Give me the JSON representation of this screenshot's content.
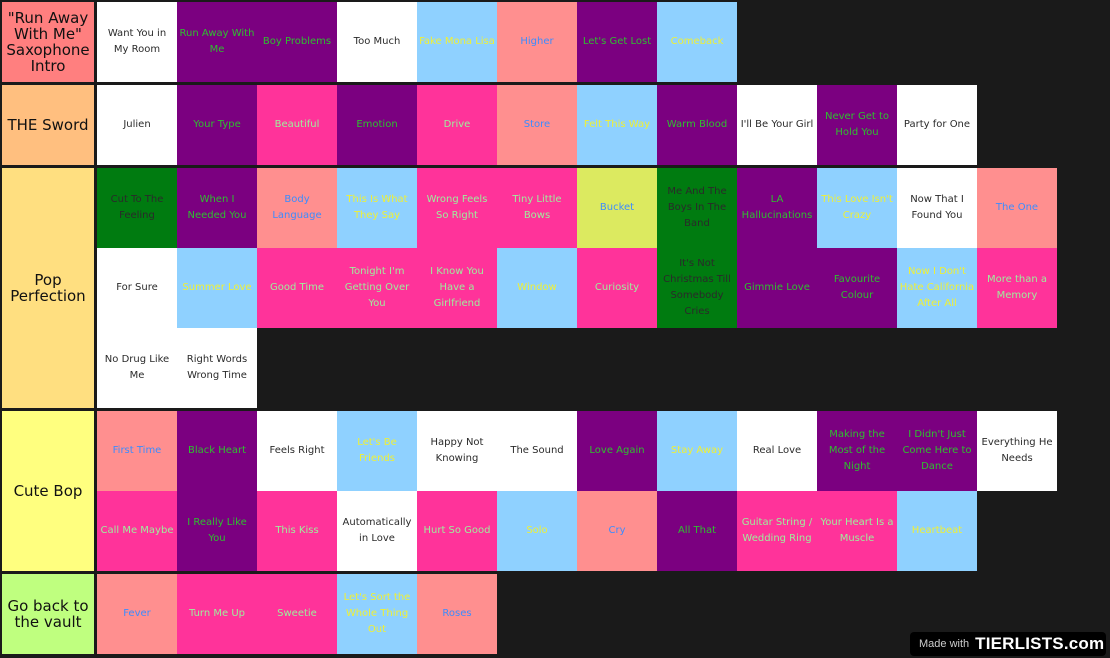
{
  "colors": {
    "white": "#ffffff",
    "purple": "#7b0080",
    "pink": "#ff339a",
    "salmon": "#ff8f8f",
    "lightblue": "#8fd1ff",
    "green": "#007b10",
    "yellowgreen": "#dcea60",
    "text_dark": "#2a2a2a",
    "text_green": "#2fbf2f",
    "text_lightgreen": "#9df09d",
    "text_yellow": "#f0f035",
    "text_blue": "#3c8cff"
  },
  "tiers": [
    {
      "name": "\"Run Away With Me\" Saxophone Intro",
      "color": "#ff7f7f",
      "rows": 1,
      "items": [
        {
          "label": "Want You in My Room",
          "bg": "white",
          "fg": "text_dark"
        },
        {
          "label": "Run Away With Me",
          "bg": "purple",
          "fg": "text_green"
        },
        {
          "label": "Boy Problems",
          "bg": "purple",
          "fg": "text_green"
        },
        {
          "label": "Too Much",
          "bg": "white",
          "fg": "text_dark"
        },
        {
          "label": "Fake Mona Lisa",
          "bg": "lightblue",
          "fg": "text_yellow"
        },
        {
          "label": "Higher",
          "bg": "salmon",
          "fg": "text_blue"
        },
        {
          "label": "Let's Get Lost",
          "bg": "purple",
          "fg": "text_green"
        },
        {
          "label": "Comeback",
          "bg": "lightblue",
          "fg": "text_yellow"
        }
      ]
    },
    {
      "name": "THE Sword",
      "color": "#ffbf7f",
      "rows": 1,
      "items": [
        {
          "label": "Julien",
          "bg": "white",
          "fg": "text_dark"
        },
        {
          "label": "Your Type",
          "bg": "purple",
          "fg": "text_green"
        },
        {
          "label": "Beautiful",
          "bg": "pink",
          "fg": "text_lightgreen"
        },
        {
          "label": "Emotion",
          "bg": "purple",
          "fg": "text_green"
        },
        {
          "label": "Drive",
          "bg": "pink",
          "fg": "text_lightgreen"
        },
        {
          "label": "Store",
          "bg": "salmon",
          "fg": "text_blue"
        },
        {
          "label": "Felt This Way",
          "bg": "lightblue",
          "fg": "text_yellow"
        },
        {
          "label": "Warm Blood",
          "bg": "purple",
          "fg": "text_green"
        },
        {
          "label": "I'll Be Your Girl",
          "bg": "white",
          "fg": "text_dark"
        },
        {
          "label": "Never Get to Hold You",
          "bg": "purple",
          "fg": "text_green"
        },
        {
          "label": "Party for One",
          "bg": "white",
          "fg": "text_dark"
        }
      ]
    },
    {
      "name": "Pop Perfection",
      "color": "#ffdf80",
      "rows": 3,
      "items": [
        {
          "label": "Cut To The Feeling",
          "bg": "green",
          "fg": "text_dark"
        },
        {
          "label": "When I Needed You",
          "bg": "purple",
          "fg": "text_green"
        },
        {
          "label": "Body Language",
          "bg": "salmon",
          "fg": "text_blue"
        },
        {
          "label": "This Is What They Say",
          "bg": "lightblue",
          "fg": "text_yellow"
        },
        {
          "label": "Wrong Feels So Right",
          "bg": "pink",
          "fg": "text_lightgreen"
        },
        {
          "label": "Tiny Little Bows",
          "bg": "pink",
          "fg": "text_lightgreen"
        },
        {
          "label": "Bucket",
          "bg": "yellowgreen",
          "fg": "text_blue"
        },
        {
          "label": "Me And The Boys In The Band",
          "bg": "green",
          "fg": "text_dark"
        },
        {
          "label": "LA Hallucinations",
          "bg": "purple",
          "fg": "text_green"
        },
        {
          "label": "This Love Isn't Crazy",
          "bg": "lightblue",
          "fg": "text_yellow"
        },
        {
          "label": "Now That I Found You",
          "bg": "white",
          "fg": "text_dark"
        },
        {
          "label": "The One",
          "bg": "salmon",
          "fg": "text_blue"
        },
        {
          "label": "For Sure",
          "bg": "white",
          "fg": "text_dark"
        },
        {
          "label": "Summer Love",
          "bg": "lightblue",
          "fg": "text_yellow"
        },
        {
          "label": "Good Time",
          "bg": "pink",
          "fg": "text_lightgreen"
        },
        {
          "label": "Tonight I'm Getting Over You",
          "bg": "pink",
          "fg": "text_lightgreen"
        },
        {
          "label": "I Know You Have a Girlfriend",
          "bg": "pink",
          "fg": "text_lightgreen"
        },
        {
          "label": "Window",
          "bg": "lightblue",
          "fg": "text_yellow"
        },
        {
          "label": "Curiosity",
          "bg": "pink",
          "fg": "text_lightgreen"
        },
        {
          "label": "It's Not Christmas Till Somebody Cries",
          "bg": "green",
          "fg": "text_dark"
        },
        {
          "label": "Gimmie Love",
          "bg": "purple",
          "fg": "text_green"
        },
        {
          "label": "Favourite Colour",
          "bg": "purple",
          "fg": "text_green"
        },
        {
          "label": "Now I Don't Hate California After All",
          "bg": "lightblue",
          "fg": "text_yellow"
        },
        {
          "label": "More than a Memory",
          "bg": "pink",
          "fg": "text_lightgreen"
        },
        {
          "label": "No Drug Like Me",
          "bg": "white",
          "fg": "text_dark"
        },
        {
          "label": "Right Words Wrong Time",
          "bg": "white",
          "fg": "text_dark"
        }
      ]
    },
    {
      "name": "Cute Bop",
      "color": "#ffff7f",
      "rows": 2,
      "items": [
        {
          "label": "First Time",
          "bg": "salmon",
          "fg": "text_blue"
        },
        {
          "label": "Black Heart",
          "bg": "purple",
          "fg": "text_green"
        },
        {
          "label": "Feels Right",
          "bg": "white",
          "fg": "text_dark"
        },
        {
          "label": "Let's Be Friends",
          "bg": "lightblue",
          "fg": "text_yellow"
        },
        {
          "label": "Happy Not Knowing",
          "bg": "white",
          "fg": "text_dark"
        },
        {
          "label": "The Sound",
          "bg": "white",
          "fg": "text_dark"
        },
        {
          "label": "Love Again",
          "bg": "purple",
          "fg": "text_green"
        },
        {
          "label": "Stay Away",
          "bg": "lightblue",
          "fg": "text_yellow"
        },
        {
          "label": "Real Love",
          "bg": "white",
          "fg": "text_dark"
        },
        {
          "label": "Making the Most of the Night",
          "bg": "purple",
          "fg": "text_green"
        },
        {
          "label": "I Didn't Just Come Here to Dance",
          "bg": "purple",
          "fg": "text_green"
        },
        {
          "label": "Everything He Needs",
          "bg": "white",
          "fg": "text_dark"
        },
        {
          "label": "Call Me Maybe",
          "bg": "pink",
          "fg": "text_lightgreen"
        },
        {
          "label": "I Really Like You",
          "bg": "purple",
          "fg": "text_green"
        },
        {
          "label": "This Kiss",
          "bg": "pink",
          "fg": "text_lightgreen"
        },
        {
          "label": "Automatically in Love",
          "bg": "white",
          "fg": "text_dark"
        },
        {
          "label": "Hurt So Good",
          "bg": "pink",
          "fg": "text_lightgreen"
        },
        {
          "label": "Solo",
          "bg": "lightblue",
          "fg": "text_yellow"
        },
        {
          "label": "Cry",
          "bg": "salmon",
          "fg": "text_blue"
        },
        {
          "label": "All That",
          "bg": "purple",
          "fg": "text_green"
        },
        {
          "label": "Guitar String / Wedding Ring",
          "bg": "pink",
          "fg": "text_lightgreen"
        },
        {
          "label": "Your Heart Is a Muscle",
          "bg": "pink",
          "fg": "text_lightgreen"
        },
        {
          "label": "Heartbeat",
          "bg": "lightblue",
          "fg": "text_yellow"
        }
      ]
    },
    {
      "name": "Go back to the vault",
      "color": "#bfff7f",
      "rows": 1,
      "items": [
        {
          "label": "Fever",
          "bg": "salmon",
          "fg": "text_blue"
        },
        {
          "label": "Turn Me Up",
          "bg": "pink",
          "fg": "text_lightgreen"
        },
        {
          "label": "Sweetie",
          "bg": "pink",
          "fg": "text_lightgreen"
        },
        {
          "label": "Let's Sort the Whole Thing Out",
          "bg": "lightblue",
          "fg": "text_yellow"
        },
        {
          "label": "Roses",
          "bg": "salmon",
          "fg": "text_blue"
        }
      ]
    }
  ],
  "footer": {
    "made_with": "Made with",
    "logo": "TIERLISTS.com"
  }
}
